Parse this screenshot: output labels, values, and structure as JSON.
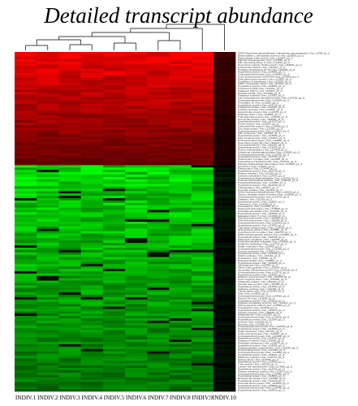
{
  "chart_data": {
    "type": "heatmap",
    "title": "Detailed transcript abundance",
    "columns": [
      "INDIV.1",
      "INDIV.2",
      "INDIV.3",
      "INDIV.4",
      "INDIV.5",
      "INDIV.6",
      "INDIV.7",
      "INDIV.8",
      "INDIV.9",
      "INDIV.10"
    ],
    "rows": [
      "NADP-dependent glyceraldehyde-3-phosphate dehydrogenase | Kaz_c1408_g1_i1",
      "Beta-amylase 1 chloroplastic isoform | Kaz_c118055_g1_i1",
      "Ribonuclease 1-like protein | Kaz_c112067_g1_i2",
      "Mannitol dehydrogenase | Kaz_c114050_g1_i1",
      "CBL-interacting kinase 2 | Kaz_c114209_g1_i1",
      "Heat shock cognate 70 kDa protein | Kaz_c115001_g1_i1",
      "Lipid transfer protein | Kaz_c113301_g1_i1",
      "Probable phosphatase 2C 24 | Kaz_c113005_g1_i1",
      "Hypothetical protein | Kaz_c114881_g1_i1",
      "Uncharacterized protein | Kaz_c115460_g1_i2",
      "Auxin-induced protein 5NG4-like | Kaz_c118050_g1_i1",
      "Early light-induced protein | Kaz_c114500_g1_i1",
      "Glutathione S-transferase | Kaz_c115503_g1_i1",
      "WRKY transcription factor | Kaz_c113701_g1_i1",
      "Hypothetical protein | Kaz_c116621_g1_i1",
      "Cytochrome P450 | Kaz_c114701_g1_i1",
      "Aquaporin PIP2-1 | Kaz_c115207_g1_i1",
      "Dehydrin DHN1 | Kaz_c113330_g1_i1",
      "Galactinol synthase | Kaz_c115012_g1_i1",
      "Late embryogenesis abundant protein | Kaz_c114100_g1_i1",
      "Uncharacterized protein | Kaz_c113006_g1_i1",
      "Peroxidase 12 | Kaz_c116050_g1_i1",
      "Hypothetical protein | Kaz_c118720_g1_i1",
      "Polyphenol oxidase | Kaz_c114003_g1_i1",
      "Cysteine protease | Kaz_c114507_g1_i1",
      "Expansin-like protein | Kaz_c113708_g1_i1",
      "Chitinase class I | Kaz_c118066_g1_i1",
      "Thaumatin-like protein | Kaz_c115220_g1_i1",
      "Germin-like protein | Kaz_c114660_g1_i1",
      "Hypothetical protein | Kaz_c113029_g1_i1",
      "Protein kinase | Kaz_c116002_g1_i1",
      "Calmodulin-like protein | Kaz_c114880_g1_i1",
      "Zinc finger protein | Kaz_c115005_g1_i1",
      "Uncharacterized protein | Kaz_c118201_g1_i1",
      "ABC transporter | Kaz_c113404_g1_i1",
      "Hypothetical protein | Kaz_c114909_g1_i1",
      "NAC domain protein | Kaz_c113607_g1_i1",
      "MYB transcription factor | Kaz_c115080_g1_i1",
      "Heat shock protein 90 | Kaz_c114022_g1_i1",
      "Glycosyltransferase | Kaz_c116301_g1_i1",
      "Hypothetical protein | Kaz_c113020_g1_i1",
      "Pectin methylesterase | Kaz_c114450_g1_i1",
      "Xyloglucan endotransglycosylase | Kaz_c118000_g1_i1",
      "Uncharacterized protein | Kaz_c115620_g1_i1",
      "Hypothetical protein | Kaz_c113730_g1_i1",
      "Photosystem II protein | Kaz_c114010_g1_i1",
      "Chlorophyll a-b binding protein | Kaz_c114120_g1_i1",
      "Ribulose bisphosphate carboxylase | Kaz_c113540_g1_i1",
      "Ferredoxin | Kaz_c115201_g1_i1",
      "Plastocyanin | Kaz_c114044_g1_i1",
      "Hypothetical protein | Kaz_c116730_g1_i1",
      "Rubisco activase | Kaz_c113190_g1_i1",
      "Carbonic anhydrase | Kaz_c114571_g1_i1",
      "Sedoheptulose-bisphosphatase | Kaz_c115300_g1_i1",
      "Fructose-bisphosphate aldolase | Kaz_c118410_g1_i1",
      "Phosphoribulokinase | Kaz_c114005_g1_i1",
      "Hypothetical protein | Kaz_c113209_g1_i1",
      "Transketolase | Kaz_c115670_g1_i1",
      "Glycolate oxidase | Kaz_c114320_g1_i1",
      "Serine hydroxymethyltransferase | Kaz_c116009_g1_i1",
      "Glycine cleavage system H protein | Kaz_c113008_g1_i1",
      "Uncharacterized protein | Kaz_c114702_g1_i1",
      "Catalase | Kaz_c115103_g1_i1",
      "Hypothetical protein | Kaz_c118007_g1_i1",
      "Thioredoxin | Kaz_c114402_g1_i1",
      "Peroxiredoxin | Kaz_c113650_g1_i1",
      "Superoxide dismutase | Kaz_c115050_g1_i1",
      "Ascorbate peroxidase | Kaz_c114060_g1_i1",
      "Hypothetical protein | Kaz_c116660_g1_i1",
      "Elongation factor Tu | Kaz_c113250_g1_i1",
      "50S ribosomal protein | Kaz_c114880_g1_i2",
      "30S ribosomal protein | Kaz_c115004_g1_i1",
      "Uncharacterized protein | Kaz_c118303_g1_i1",
      "Hypothetical protein | Kaz_c113002_g1_i1",
      "Translation initiation factor | Kaz_c114106_g1_i1",
      "ATP synthase subunit | Kaz_c115880_g1_i1",
      "Cytochrome b6-f complex | Kaz_c114730_g1_i1",
      "NADH dehydrogenase subunit | Kaz_c113900_g1_i1",
      "Hypothetical protein | Kaz_c116100_g1_i1",
      "Magnesium chelatase | Kaz_c114206_g1_i1",
      "Protochlorophyllide reductase | Kaz_c115400_g1_i1",
      "Glutamine synthetase | Kaz_c113701_g1_i2",
      "Nitrate reductase | Kaz_c114050_g1_i2",
      "Uncharacterized protein | Kaz_c118090_g1_i1",
      "Sucrose synthase | Kaz_c115601_g1_i1",
      "Hypothetical protein | Kaz_c114308_g1_i1",
      "Starch synthase | Kaz_c113110_g1_i1",
      "Hexokinase | Kaz_c116202_g1_i1",
      "Beta-glucosidase | Kaz_c114900_g1_i1",
      "Hypothetical protein | Kaz_c115020_g1_i1",
      "Lipoxygenase | Kaz_c113450_g1_i1",
      "Allene oxide synthase | Kaz_c114603_g1_i1",
      "Jasmonate ZIM-domain protein | Kaz_c118130_g1_i1",
      "Uncharacterized protein | Kaz_c115710_g1_i1",
      "Hypothetical protein | Kaz_c114002_g1_i1",
      "Ethylene response factor | Kaz_c113330_g1_i2",
      "Auxin response factor | Kaz_c116400_g1_i1",
      "Gibberellin oxidase | Kaz_c114450_g1_i2",
      "Abscisic acid receptor | Kaz_c115090_g1_i1",
      "Hypothetical protein | Kaz_c113060_g1_i1",
      "Cellulose synthase | Kaz_c114780_g1_i1",
      "Tubulin alpha chain | Kaz_c115250_g1_i1",
      "Actin | Kaz_c118500_g1_i1",
      "Uncharacterized protein | Kaz_c114030_g1_i1",
      "Histone H4 | Kaz_c113808_g1_i1",
      "Hypothetical protein | Kaz_c116020_g1_i1",
      "Ubiquitin-conjugating enzyme | Kaz_c114101_g1_i1",
      "26S proteasome subunit | Kaz_c115500_g1_i1",
      "Polyubiquitin | Kaz_c113150_g1_i1",
      "Hypothetical protein | Kaz_c114670_g1_i1",
      "Aspartic protease | Kaz_c118060_g1_i1",
      "Metallothionein | Kaz_c115003_g1_i1",
      "Uncharacterized protein | Kaz_c114205_g1_i1",
      "Hypothetical protein | Kaz_c113340_g1_i1",
      "Annexin | Kaz_c116550_g1_i1",
      "Remorin | Kaz_c114090_g1_i1",
      "Phosphatidylinositol kinase | Kaz_c115160_g1_i1",
      "Hypothetical protein | Kaz_c113880_g1_i1",
      "Sugar transporter | Kaz_c114410_g1_i1",
      "Amino acid permease | Kaz_c118220_g1_i1",
      "Uncharacterized protein | Kaz_c115300_g1_i2",
      "Hypothetical protein | Kaz_c114003_g1_i2",
      "Potassium channel | Kaz_c113006_g1_i2",
      "Phosphate transporter | Kaz_c116070_g1_i1",
      "Hypothetical protein | Kaz_c114509_g1_i1",
      "Pentatricopeptide repeat protein | Kaz_c115040_g1_i1",
      "RNA-binding protein | Kaz_c113290_g1_i1",
      "Uncharacterized protein | Kaz_c114820_g1_i1",
      "Hypothetical protein | Kaz_c118011_g1_i1",
      "DEAD-box helicase | Kaz_c115770_g1_i1",
      "Splicing factor | Kaz_c114150_g1_i1",
      "Hypothetical protein | Kaz_c113403_g1_i1",
      "F-box protein | Kaz_c116300_g1_i1",
      "Leucine-rich repeat protein | Kaz_c114600_g1_i1",
      "Hypothetical protein | Kaz_c115209_g1_i1",
      "Disease resistance protein | Kaz_c113070_g1_i1",
      "Uncharacterized protein | Kaz_c114040_g1_i1",
      "Hypothetical protein | Kaz_c118600_g1_i1",
      "Receptor-like kinase | Kaz_c115880_g1_i2",
      "Hypothetical protein | Kaz_c114330_g1_i1",
      "Universal stress protein | Kaz_c113550_g1_i1",
      "Hypothetical protein | Kaz_c116800_g1_i1",
      "Uncharacterized protein | Kaz_c114700_g1_i2",
      "Hypothetical protein | Kaz_c115010_g1_i1"
    ],
    "values": [],
    "colormap": {
      "high": "#ff0000",
      "mid": "#000000",
      "low": "#00ff00"
    },
    "legend": false,
    "dendrogram": "columns"
  }
}
